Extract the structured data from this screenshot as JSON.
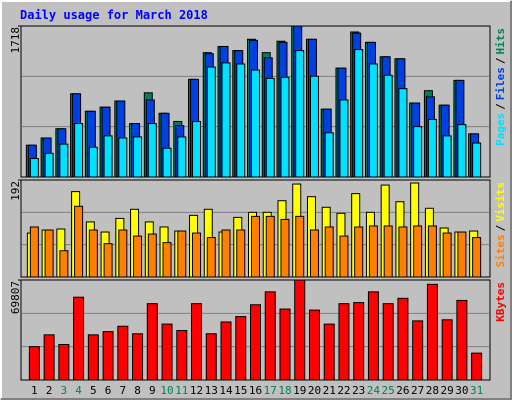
{
  "chart_data": [
    {
      "type": "bar",
      "title": "Daily usage for March 2018",
      "ylim": [
        0,
        1718
      ],
      "yticks": [
        1718
      ],
      "legend_separator": "/",
      "series": [
        {
          "name": "Hits",
          "color": "#00805c",
          "values": [
            362,
            444,
            549,
            947,
            748,
            795,
            865,
            608,
            958,
            725,
            632,
            1111,
            1415,
            1485,
            1438,
            1567,
            1415,
            1545,
            1718,
            1567,
            772,
            1239,
            1650,
            1532,
            1368,
            1345,
            842,
            982,
            818,
            1099,
            491
          ]
        },
        {
          "name": "Files",
          "color": "#0040e0",
          "values": [
            362,
            444,
            549,
            947,
            748,
            795,
            865,
            608,
            877,
            725,
            585,
            1111,
            1403,
            1485,
            1438,
            1555,
            1356,
            1532,
            1718,
            1567,
            772,
            1239,
            1637,
            1532,
            1368,
            1345,
            842,
            912,
            818,
            1099,
            491
          ]
        },
        {
          "name": "Pages",
          "color": "#00e0ff",
          "values": [
            210,
            269,
            374,
            608,
            339,
            468,
            444,
            456,
            608,
            327,
            456,
            631,
            1251,
            1298,
            1286,
            1216,
            1122,
            1134,
            1438,
            1146,
            503,
            877,
            1450,
            1286,
            1157,
            1005,
            573,
            655,
            468,
            596,
            386
          ]
        }
      ]
    },
    {
      "type": "bar",
      "ylim": [
        0,
        192
      ],
      "yticks": [
        192
      ],
      "legend_separator": "/",
      "series": [
        {
          "name": "Visits",
          "color": "#ffff00",
          "values": [
            87,
            93,
            95,
            169,
            109,
            89,
            116,
            134,
            109,
            99,
            91,
            122,
            134,
            89,
            118,
            128,
            128,
            151,
            184,
            159,
            138,
            126,
            165,
            128,
            182,
            149,
            186,
            136,
            97,
            89,
            91
          ]
        },
        {
          "name": "Sites",
          "color": "#ff8000",
          "values": [
            99,
            93,
            52,
            140,
            93,
            66,
            93,
            81,
            85,
            68,
            91,
            87,
            78,
            93,
            93,
            120,
            120,
            114,
            120,
            93,
            99,
            81,
            99,
            101,
            101,
            99,
            101,
            101,
            87,
            89,
            78
          ]
        }
      ]
    },
    {
      "type": "bar",
      "ylim": [
        0,
        69807
      ],
      "yticks": [
        69807
      ],
      "categories": [
        "1",
        "2",
        "3",
        "4",
        "5",
        "6",
        "7",
        "8",
        "9",
        "10",
        "11",
        "12",
        "13",
        "14",
        "15",
        "16",
        "17",
        "18",
        "19",
        "20",
        "21",
        "22",
        "23",
        "24",
        "25",
        "26",
        "27",
        "28",
        "29",
        "30",
        "31"
      ],
      "category_colors": [
        "#000",
        "#000",
        "#00805c",
        "#00805c",
        "#000",
        "#000",
        "#000",
        "#000",
        "#000",
        "#00805c",
        "#00805c",
        "#000",
        "#000",
        "#000",
        "#000",
        "#000",
        "#00805c",
        "#00805c",
        "#000",
        "#000",
        "#000",
        "#000",
        "#000",
        "#00805c",
        "#00805c",
        "#000",
        "#000",
        "#000",
        "#000",
        "#000",
        "#00805c"
      ],
      "series": [
        {
          "name": "KBytes",
          "color": "#ff0000",
          "values": [
            23269,
            31526,
            24770,
            57797,
            31526,
            33777,
            37530,
            32276,
            53294,
            39031,
            34528,
            53294,
            32276,
            40532,
            44285,
            52543,
            61549,
            49540,
            69807,
            48790,
            39031,
            53294,
            54045,
            61549,
            53294,
            57047,
            41283,
            66804,
            42033,
            55546,
            18765
          ]
        }
      ]
    }
  ]
}
